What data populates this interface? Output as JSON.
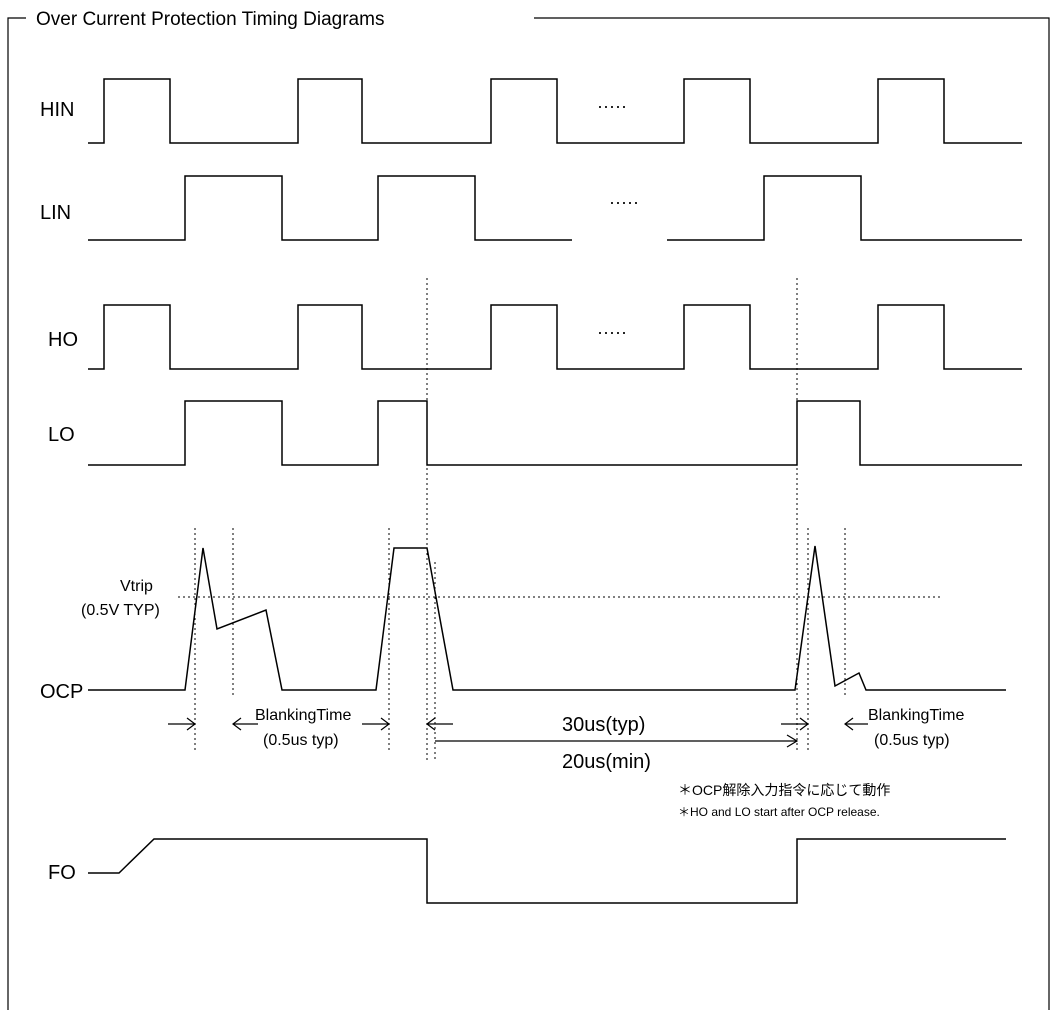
{
  "title": "Over Current Protection Timing Diagrams",
  "signals": {
    "hin": "HIN",
    "lin": "LIN",
    "ho": "HO",
    "lo": "LO",
    "ocp": "OCP",
    "fo": "FO"
  },
  "ellipsis": "·····",
  "vtrip": {
    "label": "Vtrip",
    "value": "(0.5V TYP)"
  },
  "blanking": {
    "label": "BlankingTime",
    "value": "(0.5us typ)"
  },
  "notes": {
    "jp": "＊OCP解除入力指令に応じて動作",
    "en": "＊HO and LO start after OCP release."
  },
  "fo_timing": {
    "typ": "30us(typ)",
    "min": "20us(min)"
  }
}
